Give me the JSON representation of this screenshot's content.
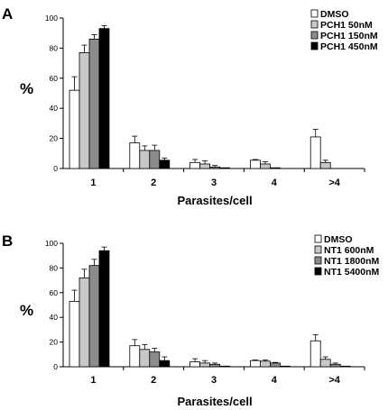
{
  "chart_data": [
    {
      "panel": "A",
      "type": "bar",
      "ylabel": "%",
      "xlabel": "Parasites/cell",
      "ylim": [
        0,
        100
      ],
      "yticks": [
        "0",
        "20",
        "40",
        "60",
        "80",
        "100"
      ],
      "categories": [
        "1",
        "2",
        "3",
        "4",
        ">4"
      ],
      "legend_position": "top-right",
      "series": [
        {
          "name": "DMSO",
          "color": "#ffffff",
          "values": [
            52,
            17,
            4,
            5.5,
            21
          ],
          "errors": [
            9,
            4.5,
            2,
            0.5,
            5
          ]
        },
        {
          "name": "PCH1 50nM",
          "color": "#c8c8c8",
          "values": [
            77,
            12,
            3,
            3,
            4
          ],
          "errors": [
            5,
            3,
            2,
            1.5,
            1.5
          ]
        },
        {
          "name": "PCH1 150nM",
          "color": "#8c8c8c",
          "values": [
            86,
            12,
            1,
            0.5,
            0
          ],
          "errors": [
            3,
            3.5,
            1,
            0,
            0
          ]
        },
        {
          "name": "PCH1  450nM",
          "color": "#000000",
          "values": [
            93,
            5.5,
            0.5,
            0,
            0
          ],
          "errors": [
            2,
            1.5,
            0,
            0,
            0
          ]
        }
      ]
    },
    {
      "panel": "B",
      "type": "bar",
      "ylabel": "%",
      "xlabel": "Parasites/cell",
      "ylim": [
        0,
        100
      ],
      "yticks": [
        "0",
        "20",
        "40",
        "60",
        "80",
        "100"
      ],
      "categories": [
        "1",
        "2",
        "3",
        "4",
        ">4"
      ],
      "legend_position": "top-right",
      "series": [
        {
          "name": "DMSO",
          "color": "#ffffff",
          "values": [
            53,
            17,
            4,
            5,
            21
          ],
          "errors": [
            9,
            5,
            2.5,
            0.5,
            5
          ]
        },
        {
          "name": "NT1  600nM",
          "color": "#c8c8c8",
          "values": [
            72,
            14,
            3,
            4.5,
            6
          ],
          "errors": [
            7,
            4,
            2,
            1,
            2
          ]
        },
        {
          "name": "NT1 1800nM",
          "color": "#8c8c8c",
          "values": [
            82,
            12,
            2,
            3,
            2
          ],
          "errors": [
            5,
            3,
            1,
            0.5,
            1
          ]
        },
        {
          "name": "NT1 5400nM",
          "color": "#000000",
          "values": [
            94,
            5,
            0.5,
            0.5,
            0.5
          ],
          "errors": [
            3,
            3,
            0,
            0,
            0
          ]
        }
      ]
    }
  ]
}
